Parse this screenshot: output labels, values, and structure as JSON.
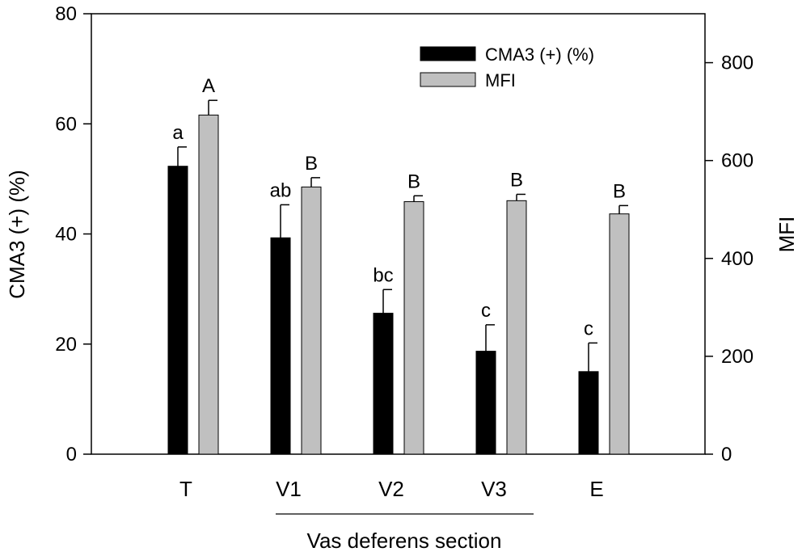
{
  "chart_data": {
    "type": "bar",
    "xlabel": "Vas deferens section",
    "categories": [
      "T",
      "V1",
      "V2",
      "V3",
      "E"
    ],
    "y_left": {
      "label": "CMA3 (+) (%)",
      "ylim": [
        0,
        80
      ],
      "ticks": [
        0,
        20,
        40,
        60,
        80
      ]
    },
    "y_right": {
      "label": "MFI",
      "ylim": [
        0,
        900
      ],
      "ticks": [
        0,
        200,
        400,
        600,
        800
      ]
    },
    "series": [
      {
        "name": "CMA3 (+) (%)",
        "axis": "left",
        "color": "#000000",
        "values": [
          52.3,
          39.3,
          25.6,
          18.7,
          15.0
        ],
        "errors": [
          3.5,
          6.0,
          4.3,
          4.8,
          5.2
        ],
        "labels": [
          "a",
          "ab",
          "bc",
          "c",
          "c"
        ]
      },
      {
        "name": "MFI",
        "axis": "right",
        "color": "#c0c0c0",
        "values": [
          693,
          546,
          516,
          518,
          491
        ],
        "errors": [
          30,
          19,
          12,
          13,
          17
        ],
        "labels": [
          "A",
          "B",
          "B",
          "B",
          "B"
        ]
      }
    ],
    "grid": false,
    "legend_position": "top-right"
  }
}
